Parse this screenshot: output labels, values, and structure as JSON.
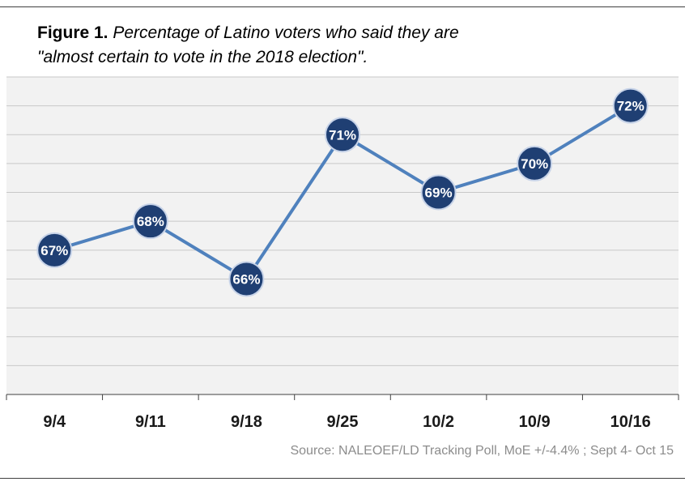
{
  "title": {
    "figure_label": "Figure 1.",
    "description_line1": "Percentage of Latino voters who said they are",
    "description_line2": "\"almost certain to vote in the 2018 election\"."
  },
  "source": "Source: NALEOEF/LD Tracking Poll, MoE +/-4.4% ; Sept 4- Oct 15",
  "colors": {
    "line": "#4f81bd",
    "marker_fill": "#1f3f73",
    "marker_stroke": "#c7d3e8",
    "plot_background": "#f2f2f2",
    "gridline": "#c8c8c8"
  },
  "chart_data": {
    "type": "line",
    "categories": [
      "9/4",
      "9/11",
      "9/18",
      "9/25",
      "10/2",
      "10/9",
      "10/16"
    ],
    "series": [
      {
        "values": [
          67,
          68,
          66,
          71,
          69,
          70,
          72
        ],
        "data_labels": [
          "67%",
          "68%",
          "66%",
          "71%",
          "69%",
          "70%",
          "72%"
        ]
      }
    ],
    "ylim": [
      62,
      73
    ],
    "grid": true,
    "legend": "none",
    "xlabel": "",
    "ylabel": ""
  }
}
